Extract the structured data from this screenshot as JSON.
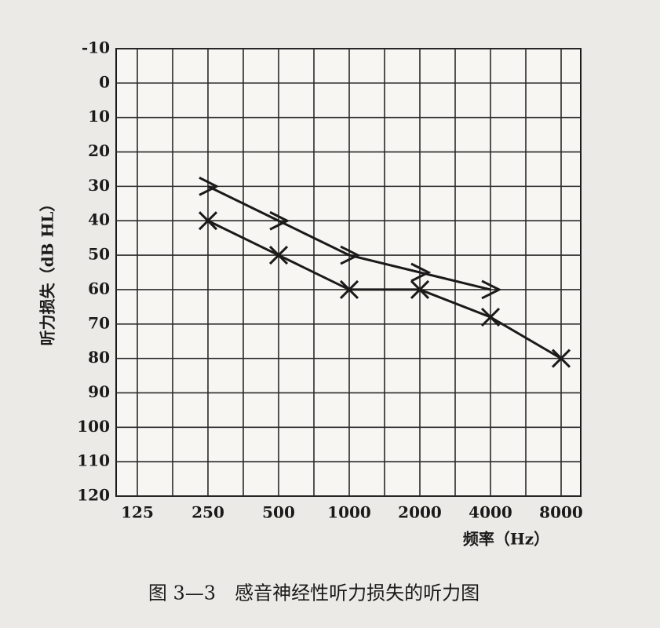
{
  "chart_data": {
    "type": "line",
    "ylabel": "听力损失（dB HL）",
    "xlabel": "频率（Hz）",
    "caption": "图 3—3　感音神经性听力损失的听力图",
    "categories": [
      "125",
      "250",
      "500",
      "1000",
      "2000",
      "4000",
      "8000"
    ],
    "series": [
      {
        "color": "#1a1a1a",
        "marker": ">",
        "values": [
          null,
          30,
          40,
          50,
          55,
          60,
          null
        ]
      },
      {
        "color": "#1a1a1a",
        "marker": "x",
        "values": [
          null,
          40,
          50,
          60,
          60,
          68,
          80
        ]
      }
    ],
    "ylim": [
      -10,
      120
    ],
    "yticks": [
      -10,
      0,
      10,
      20,
      30,
      40,
      50,
      60,
      70,
      80,
      90,
      100,
      110,
      120
    ],
    "inverted_y": true,
    "grid": true
  }
}
